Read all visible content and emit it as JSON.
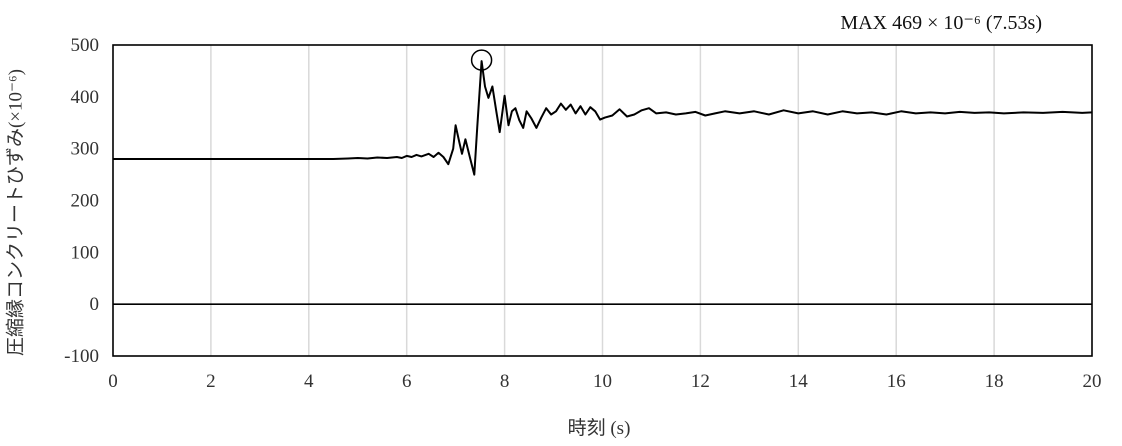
{
  "chart_data": {
    "type": "line",
    "xlabel": "時刻 (s)",
    "ylabel": "圧縮縁コンクリートひずみ(×10⁻⁶)",
    "xlim": [
      0,
      20
    ],
    "ylim": [
      -100,
      500
    ],
    "x_ticks": [
      "0",
      "2",
      "4",
      "6",
      "8",
      "10",
      "12",
      "14",
      "16",
      "18",
      "20"
    ],
    "y_ticks": [
      "500",
      "400",
      "300",
      "200",
      "100",
      "0",
      "-100"
    ],
    "grid": "vertical",
    "annotation": {
      "text": "MAX  469 × 10⁻⁶ (7.53s)",
      "x": 7.53,
      "y": 469
    },
    "series": [
      {
        "color": "#000000",
        "points": [
          [
            0,
            280
          ],
          [
            4.5,
            280
          ],
          [
            4.8,
            281
          ],
          [
            5.0,
            282
          ],
          [
            5.2,
            281
          ],
          [
            5.4,
            283
          ],
          [
            5.6,
            282
          ],
          [
            5.8,
            284
          ],
          [
            5.9,
            282
          ],
          [
            6.0,
            286
          ],
          [
            6.1,
            284
          ],
          [
            6.2,
            288
          ],
          [
            6.3,
            285
          ],
          [
            6.45,
            290
          ],
          [
            6.55,
            284
          ],
          [
            6.65,
            292
          ],
          [
            6.75,
            284
          ],
          [
            6.85,
            270
          ],
          [
            6.95,
            300
          ],
          [
            7.0,
            345
          ],
          [
            7.08,
            310
          ],
          [
            7.13,
            290
          ],
          [
            7.2,
            318
          ],
          [
            7.3,
            280
          ],
          [
            7.38,
            250
          ],
          [
            7.44,
            340
          ],
          [
            7.53,
            469
          ],
          [
            7.6,
            420
          ],
          [
            7.67,
            398
          ],
          [
            7.75,
            420
          ],
          [
            7.83,
            372
          ],
          [
            7.9,
            332
          ],
          [
            8.0,
            402
          ],
          [
            8.08,
            345
          ],
          [
            8.15,
            372
          ],
          [
            8.22,
            378
          ],
          [
            8.3,
            355
          ],
          [
            8.38,
            340
          ],
          [
            8.45,
            372
          ],
          [
            8.55,
            358
          ],
          [
            8.65,
            340
          ],
          [
            8.75,
            360
          ],
          [
            8.85,
            378
          ],
          [
            8.95,
            366
          ],
          [
            9.05,
            372
          ],
          [
            9.15,
            387
          ],
          [
            9.25,
            375
          ],
          [
            9.35,
            385
          ],
          [
            9.45,
            368
          ],
          [
            9.55,
            382
          ],
          [
            9.65,
            366
          ],
          [
            9.75,
            380
          ],
          [
            9.85,
            372
          ],
          [
            9.95,
            356
          ],
          [
            10.05,
            360
          ],
          [
            10.2,
            364
          ],
          [
            10.35,
            376
          ],
          [
            10.5,
            362
          ],
          [
            10.65,
            366
          ],
          [
            10.8,
            374
          ],
          [
            10.95,
            378
          ],
          [
            11.1,
            368
          ],
          [
            11.3,
            370
          ],
          [
            11.5,
            366
          ],
          [
            11.7,
            368
          ],
          [
            11.9,
            371
          ],
          [
            12.1,
            364
          ],
          [
            12.3,
            368
          ],
          [
            12.5,
            372
          ],
          [
            12.8,
            368
          ],
          [
            13.1,
            372
          ],
          [
            13.4,
            366
          ],
          [
            13.7,
            374
          ],
          [
            14.0,
            368
          ],
          [
            14.3,
            372
          ],
          [
            14.6,
            366
          ],
          [
            14.9,
            372
          ],
          [
            15.2,
            368
          ],
          [
            15.5,
            370
          ],
          [
            15.8,
            366
          ],
          [
            16.1,
            372
          ],
          [
            16.4,
            368
          ],
          [
            16.7,
            370
          ],
          [
            17.0,
            368
          ],
          [
            17.3,
            371
          ],
          [
            17.6,
            369
          ],
          [
            17.9,
            370
          ],
          [
            18.2,
            368
          ],
          [
            18.6,
            370
          ],
          [
            19.0,
            369
          ],
          [
            19.4,
            371
          ],
          [
            19.8,
            369
          ],
          [
            20.0,
            370
          ]
        ]
      }
    ]
  }
}
